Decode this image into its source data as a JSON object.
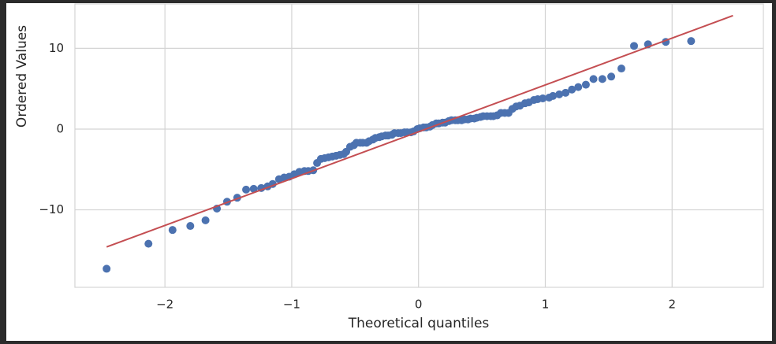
{
  "chart_data": {
    "type": "scatter",
    "xlabel": "Theoretical quantiles",
    "ylabel": "Ordered Values",
    "xlim": [
      -2.71,
      2.72
    ],
    "ylim": [
      -19.6,
      15.5
    ],
    "xticks": [
      {
        "value": -2,
        "label": "−2"
      },
      {
        "value": -1,
        "label": "−1"
      },
      0,
      1,
      2
    ],
    "yticks": [
      {
        "value": -10,
        "label": "−10"
      },
      0,
      10
    ],
    "grid": true,
    "points": {
      "color": "#4c72b0",
      "x": [
        -2.46,
        -2.13,
        -1.94,
        -1.8,
        -1.68,
        -1.59,
        -1.51,
        -1.43,
        -1.36,
        -1.3,
        -1.24,
        -1.19,
        -1.15,
        -1.1,
        -1.06,
        -1.02,
        -0.98,
        -0.94,
        -0.9,
        -0.87,
        -0.83,
        -0.8,
        -0.77,
        -0.74,
        -0.71,
        -0.68,
        -0.65,
        -0.62,
        -0.59,
        -0.57,
        -0.54,
        -0.51,
        -0.49,
        -0.46,
        -0.44,
        -0.41,
        -0.39,
        -0.36,
        -0.34,
        -0.31,
        -0.29,
        -0.26,
        -0.24,
        -0.21,
        -0.19,
        -0.16,
        -0.14,
        -0.11,
        -0.09,
        -0.06,
        -0.04,
        -0.01,
        0.01,
        0.04,
        0.06,
        0.09,
        0.11,
        0.14,
        0.16,
        0.19,
        0.21,
        0.24,
        0.26,
        0.29,
        0.31,
        0.34,
        0.36,
        0.39,
        0.41,
        0.44,
        0.46,
        0.49,
        0.51,
        0.54,
        0.57,
        0.59,
        0.62,
        0.65,
        0.68,
        0.71,
        0.74,
        0.77,
        0.8,
        0.84,
        0.87,
        0.91,
        0.94,
        0.98,
        1.03,
        1.06,
        1.11,
        1.16,
        1.21,
        1.26,
        1.32,
        1.38,
        1.45,
        1.52,
        1.6,
        1.7,
        1.81,
        1.95,
        2.15
      ],
      "y": [
        -17.3,
        -14.2,
        -12.5,
        -12.0,
        -11.3,
        -9.85,
        -9.0,
        -8.5,
        -7.5,
        -7.4,
        -7.3,
        -7.1,
        -6.8,
        -6.2,
        -6.0,
        -5.9,
        -5.6,
        -5.3,
        -5.2,
        -5.2,
        -5.1,
        -4.2,
        -3.7,
        -3.6,
        -3.5,
        -3.4,
        -3.3,
        -3.2,
        -3.1,
        -2.8,
        -2.2,
        -2.0,
        -1.7,
        -1.7,
        -1.7,
        -1.7,
        -1.5,
        -1.3,
        -1.1,
        -1.0,
        -0.9,
        -0.8,
        -0.8,
        -0.7,
        -0.5,
        -0.5,
        -0.5,
        -0.4,
        -0.4,
        -0.4,
        -0.3,
        0.0,
        0.1,
        0.2,
        0.2,
        0.3,
        0.5,
        0.7,
        0.7,
        0.8,
        0.8,
        1.0,
        1.1,
        1.1,
        1.1,
        1.1,
        1.2,
        1.2,
        1.3,
        1.3,
        1.4,
        1.5,
        1.6,
        1.6,
        1.6,
        1.6,
        1.7,
        2.0,
        2.0,
        2.0,
        2.5,
        2.8,
        2.9,
        3.2,
        3.3,
        3.6,
        3.7,
        3.8,
        3.9,
        4.1,
        4.3,
        4.5,
        4.9,
        5.2,
        5.5,
        6.2,
        6.2,
        6.5,
        7.5,
        10.3,
        10.5,
        10.8,
        10.9
      ]
    },
    "fit_line": {
      "color": "#c44e52",
      "x": [
        -2.46,
        2.48
      ],
      "y": [
        -14.6,
        14.05
      ]
    }
  }
}
